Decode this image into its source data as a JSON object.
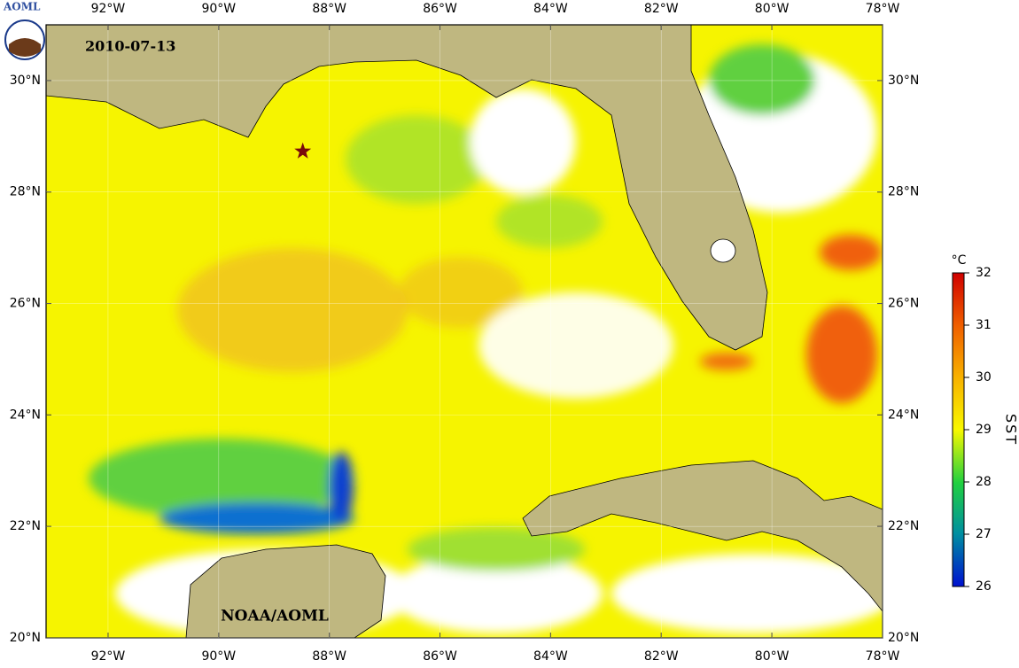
{
  "map": {
    "logo": "AOML",
    "date": "2010-07-13",
    "credit": "NOAA/AOML",
    "xlim": [
      -93.12,
      -78
    ],
    "ylim": [
      20,
      31
    ],
    "xticks": [
      {
        "value": -92,
        "label": "92°W"
      },
      {
        "value": -90,
        "label": "90°W"
      },
      {
        "value": -88,
        "label": "88°W"
      },
      {
        "value": -86,
        "label": "86°W"
      },
      {
        "value": -84,
        "label": "84°W"
      },
      {
        "value": -82,
        "label": "82°W"
      },
      {
        "value": -80,
        "label": "80°W"
      },
      {
        "value": -78,
        "label": "78°W"
      }
    ],
    "yticks": [
      {
        "value": 20,
        "label": "20°N"
      },
      {
        "value": 22,
        "label": "22°N"
      },
      {
        "value": 24,
        "label": "24°N"
      },
      {
        "value": 26,
        "label": "26°N"
      },
      {
        "value": 28,
        "label": "28°N"
      },
      {
        "value": 30,
        "label": "30°N"
      }
    ],
    "marker": {
      "lon": -88.48,
      "lat": 28.73
    },
    "colorbar": {
      "unit": "°C",
      "label": "SST",
      "lim": [
        26,
        32
      ],
      "ticks": [
        26,
        27,
        28,
        29,
        30,
        31,
        32
      ]
    }
  }
}
